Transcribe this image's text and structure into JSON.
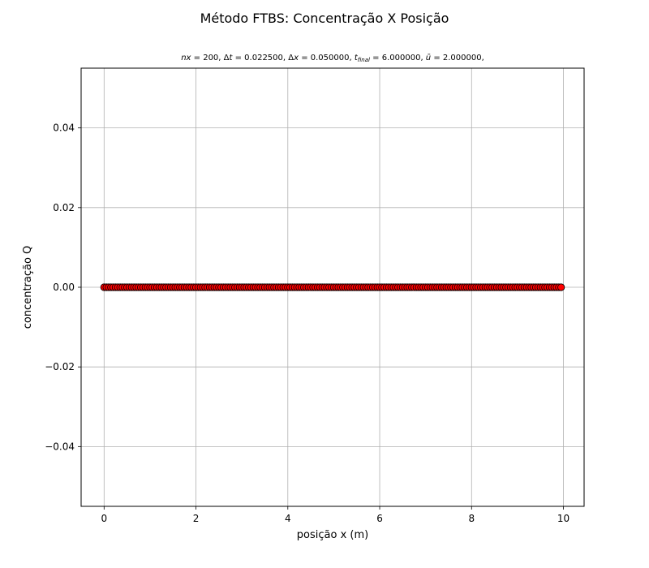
{
  "chart_data": {
    "type": "scatter",
    "title": "Método FTBS: Concentração X Posição",
    "subtitle": "nx = 200, Δt = 0.022500, Δx = 0.050000, t_final = 6.000000, ū = 2.000000,",
    "subtitle_parts": {
      "nx": "200",
      "dt": "0.022500",
      "dx": "0.050000",
      "t_final": "6.000000",
      "u_bar": "2.000000"
    },
    "xlabel": "posição x (m)",
    "ylabel": "concentração Q",
    "xlim": [
      -0.5,
      10.45
    ],
    "ylim": [
      -0.055,
      0.055
    ],
    "xticks": [
      0,
      2,
      4,
      6,
      8,
      10
    ],
    "xtick_labels": [
      "0",
      "2",
      "4",
      "6",
      "8",
      "10"
    ],
    "yticks": [
      -0.04,
      -0.02,
      0.0,
      0.02,
      0.04
    ],
    "ytick_labels": [
      "−0.04",
      "−0.02",
      "0.00",
      "0.02",
      "0.04"
    ],
    "grid": true,
    "series": [
      {
        "marker_color": "#ff0000",
        "edge_color": "#000000",
        "x_start": 0.0,
        "x_step": 0.05,
        "count": 200,
        "y_constant": 0.0
      }
    ]
  }
}
